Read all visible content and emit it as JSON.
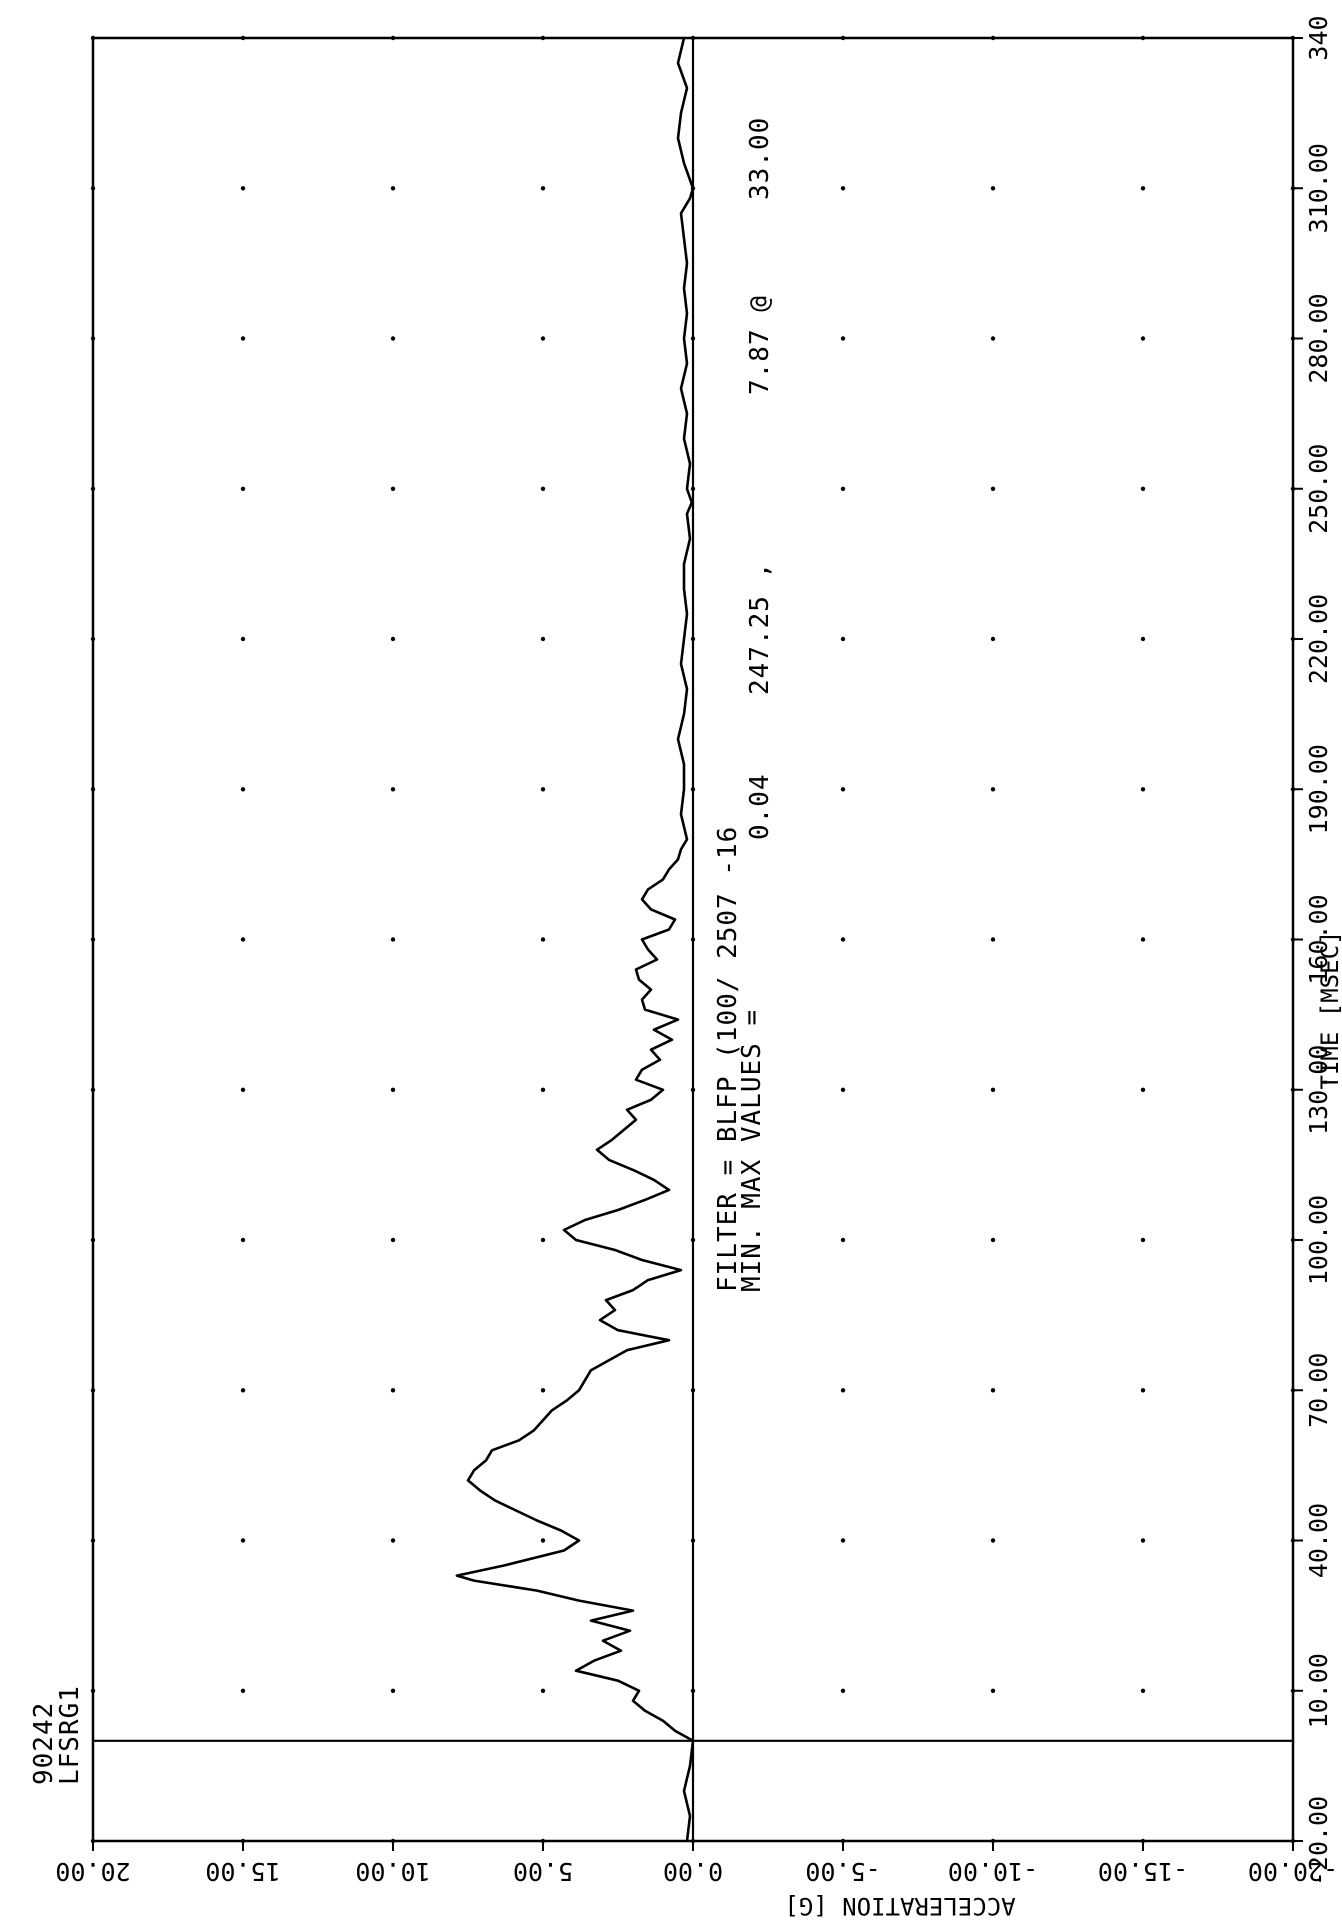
{
  "header": {
    "test_id": "90242",
    "channel": "LFSRG1",
    "filter_line": "FILTER = BLFP   (100/ 2507 -16",
    "minmax_label": "MIN. MAX VALUES =",
    "min_value": "0.04",
    "min_time": "247.25 ,",
    "max_value": "7.87 @",
    "max_time": "33.00"
  },
  "chart_data": {
    "type": "line",
    "title": "",
    "xlabel": "TIME [MSEC]",
    "ylabel": "ACCELERATION [G]",
    "xlim": [
      -20,
      340
    ],
    "ylim": [
      -20,
      20
    ],
    "grid": true,
    "x_tick_labels": [
      "-20.00",
      "10.00",
      "40.00",
      "70.00",
      "100.00",
      "130.00",
      "160.00",
      "190.00",
      "220.00",
      "250.00",
      "280.00",
      "310.00",
      "340"
    ],
    "y_tick_labels": [
      "20.00",
      "15.00",
      "10.00",
      "5.00",
      "0.00",
      "-5.00",
      "-10.00",
      "-15.00",
      "-20.00"
    ],
    "reference_lines": {
      "x": 0,
      "y": 0
    },
    "series": [
      {
        "x": [
          -20,
          -15,
          -10,
          -5,
          0,
          2,
          4,
          6,
          8,
          10,
          12,
          14,
          16,
          18,
          20,
          22,
          24,
          26,
          28,
          30,
          32,
          33,
          35,
          38,
          40,
          42,
          44,
          46,
          48,
          50,
          52,
          54,
          56,
          58,
          60,
          62,
          64,
          66,
          68,
          70,
          72,
          74,
          76,
          78,
          80,
          82,
          84,
          86,
          88,
          90,
          92,
          94,
          96,
          98,
          100,
          102,
          104,
          106,
          108,
          110,
          112,
          114,
          116,
          118,
          120,
          122,
          124,
          126,
          128,
          130,
          132,
          134,
          136,
          138,
          140,
          142,
          144,
          146,
          148,
          150,
          152,
          154,
          156,
          158,
          160,
          162,
          164,
          166,
          168,
          170,
          172,
          174,
          176,
          178,
          180,
          185,
          190,
          195,
          200,
          205,
          210,
          215,
          220,
          225,
          230,
          235,
          240,
          245,
          247.25,
          250,
          255,
          260,
          265,
          270,
          275,
          280,
          285,
          290,
          295,
          300,
          305,
          308,
          310,
          315,
          320,
          325,
          330,
          335,
          340
        ],
        "values": [
          0.2,
          0.1,
          0.3,
          0.1,
          0.0,
          0.6,
          1.0,
          1.6,
          2.0,
          1.8,
          2.5,
          3.9,
          3.3,
          2.4,
          3.0,
          2.1,
          3.4,
          2.0,
          3.8,
          5.2,
          7.3,
          7.87,
          6.3,
          4.3,
          3.8,
          4.4,
          5.2,
          5.9,
          6.6,
          7.1,
          7.5,
          7.3,
          6.9,
          6.7,
          5.8,
          5.3,
          5.0,
          4.7,
          4.2,
          3.8,
          3.6,
          3.4,
          2.8,
          2.2,
          0.8,
          2.5,
          3.1,
          2.6,
          2.9,
          2.0,
          1.5,
          0.4,
          1.7,
          2.6,
          3.9,
          4.3,
          3.6,
          2.5,
          1.6,
          0.8,
          1.3,
          2.0,
          2.8,
          3.2,
          2.7,
          2.3,
          1.9,
          2.2,
          1.4,
          1.0,
          1.9,
          1.7,
          1.1,
          1.4,
          0.7,
          1.3,
          0.5,
          1.6,
          1.7,
          1.4,
          1.8,
          1.9,
          1.2,
          1.5,
          1.7,
          0.8,
          0.6,
          1.4,
          1.7,
          1.5,
          1.0,
          0.8,
          0.5,
          0.4,
          0.2,
          0.4,
          0.3,
          0.3,
          0.5,
          0.3,
          0.2,
          0.4,
          0.3,
          0.2,
          0.3,
          0.3,
          0.1,
          0.2,
          0.04,
          0.2,
          0.1,
          0.3,
          0.2,
          0.4,
          0.2,
          0.3,
          0.2,
          0.3,
          0.2,
          0.3,
          0.4,
          0.1,
          0.0,
          0.3,
          0.5,
          0.4,
          0.2,
          0.5,
          0.3
        ]
      }
    ]
  }
}
